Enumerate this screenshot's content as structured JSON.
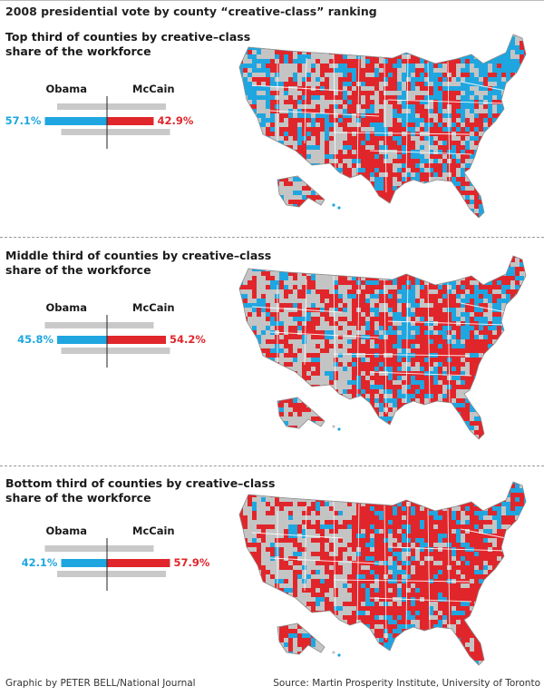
{
  "title": "2008 presidential vote by county “creative-class” ranking",
  "colors": {
    "obama": "#1fa6e0",
    "mccain": "#e0262b",
    "gray_bar": "#c9c9c9",
    "map_land": "#c4c4c4"
  },
  "chart_data": [
    {
      "type": "bar",
      "title_line1": "Top third of counties by creative–class",
      "title_line2": "share of the workforce",
      "categories": [
        "Obama",
        "McCain"
      ],
      "values": [
        57.1,
        42.9
      ],
      "obama_label": "57.1%",
      "mccain_label": "42.9%",
      "map_mix": "blue-leaning"
    },
    {
      "type": "bar",
      "title_line1": "Middle third of counties by creative–class",
      "title_line2": "share of the workforce",
      "categories": [
        "Obama",
        "McCain"
      ],
      "values": [
        45.8,
        54.2
      ],
      "obama_label": "45.8%",
      "mccain_label": "54.2%",
      "map_mix": "mixed"
    },
    {
      "type": "bar",
      "title_line1": "Bottom third of counties by creative–class",
      "title_line2": "share of the workforce",
      "categories": [
        "Obama",
        "McCain"
      ],
      "values": [
        42.1,
        57.9
      ],
      "obama_label": "42.1%",
      "mccain_label": "57.9%",
      "map_mix": "red-leaning"
    }
  ],
  "footer": {
    "credit": "Graphic by PETER BELL/National Journal",
    "source": "Source: Martin Prosperity Institute, University of Toronto"
  }
}
